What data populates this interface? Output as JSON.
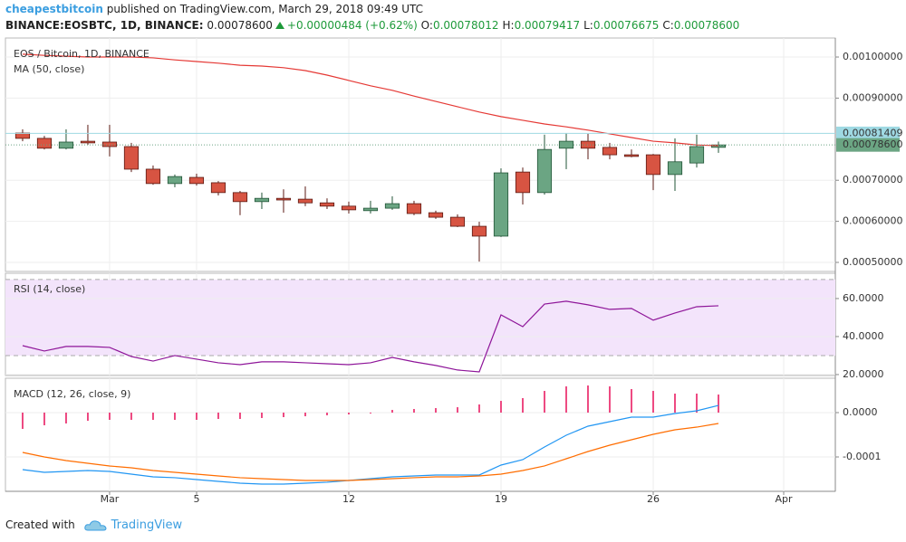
{
  "header": {
    "author": "cheapestbitcoin",
    "published": "published on TradingView.com, March 29, 2018 09:49 UTC",
    "symbol": "BINANCE:EOSBTC, 1D, BINANCE:",
    "last": "0.00078600",
    "change": "+0.00000484 (+0.62%)",
    "ohlc": [
      {
        "key": "O:",
        "text": "0.00078012"
      },
      {
        "key": "H:",
        "text": "0.00079417"
      },
      {
        "key": "L:",
        "text": "0.00076675"
      },
      {
        "key": "C:",
        "text": "0.00078600"
      }
    ]
  },
  "footer": {
    "text": "Created with",
    "brand": "TradingView"
  },
  "chart_data": [
    {
      "type": "candlestick",
      "xlim": [
        -0.79,
        37.375
      ],
      "xticks": [
        {
          "value": 4,
          "label": "Mar"
        },
        {
          "value": 8,
          "label": "5"
        },
        {
          "value": 15,
          "label": "12"
        },
        {
          "value": 22,
          "label": "19"
        },
        {
          "value": 29,
          "label": "26"
        },
        {
          "value": 35,
          "label": "Apr"
        }
      ],
      "ylim": [
        0.000478,
        0.0010463
      ],
      "yticks": [
        {
          "value": 0.0005,
          "label": "0.00050000"
        },
        {
          "value": 0.0006,
          "label": "0.00060000"
        },
        {
          "value": 0.0007,
          "label": "0.00070000"
        },
        {
          "value": 0.0009,
          "label": "0.00090000"
        },
        {
          "value": 0.001,
          "label": "0.00100000"
        }
      ],
      "grid": true,
      "series": [
        {
          "name": "EOS / Bitcoin, 1D, BINANCE",
          "type": "candlestick",
          "up_color": "#6ba583",
          "down_color": "#d75442",
          "open": [
            0.000815,
            0.000802,
            0.000778,
            0.000795,
            0.000793,
            0.000782,
            0.000727,
            0.000692,
            0.000707,
            0.000694,
            0.00067,
            0.000648,
            0.000656,
            0.000654,
            0.000645,
            0.000637,
            0.000626,
            0.000632,
            0.000643,
            0.000621,
            0.00061,
            0.000588,
            0.000564,
            0.00072,
            0.00067,
            0.000778,
            0.000795,
            0.00078,
            0.000762,
            0.000762,
            0.000714,
            0.000742,
            0.00078012
          ],
          "high": [
            0.000824,
            0.000808,
            0.000824,
            0.000835,
            0.000835,
            0.000791,
            0.000736,
            0.000714,
            0.000716,
            0.000698,
            0.000674,
            0.00067,
            0.000678,
            0.000685,
            0.000656,
            0.000648,
            0.00065,
            0.000661,
            0.00065,
            0.000626,
            0.000617,
            0.000599,
            0.000729,
            0.000731,
            0.000811,
            0.000815,
            0.000813,
            0.000791,
            0.000775,
            0.000764,
            0.000802,
            0.000811,
            0.00079417
          ],
          "low": [
            0.000795,
            0.000775,
            0.000775,
            0.000786,
            0.000758,
            0.00072,
            0.000689,
            0.000683,
            0.000687,
            0.000663,
            0.000615,
            0.00063,
            0.000621,
            0.000637,
            0.00063,
            0.000619,
            0.000619,
            0.000628,
            0.000615,
            0.000606,
            0.000586,
            0.000502,
            0.000562,
            0.000641,
            0.000665,
            0.000727,
            0.000751,
            0.000751,
            0.000756,
            0.000676,
            0.000674,
            0.000731,
            0.00076675
          ],
          "close": [
            0.000802,
            0.000778,
            0.000793,
            0.000791,
            0.000782,
            0.000727,
            0.000692,
            0.000709,
            0.000692,
            0.00067,
            0.000648,
            0.000656,
            0.000652,
            0.000645,
            0.000637,
            0.000628,
            0.000632,
            0.000643,
            0.000619,
            0.00061,
            0.000588,
            0.000564,
            0.000718,
            0.00067,
            0.000775,
            0.000795,
            0.000778,
            0.000762,
            0.000758,
            0.000714,
            0.000745,
            0.000782,
            0.000786
          ]
        },
        {
          "name": "MA (50, close)",
          "type": "line",
          "color": "#e53935",
          "values": [
            0.001007,
            0.001004,
            0.001002,
            0.001,
            0.001,
            0.001,
            0.000998,
            0.000993,
            0.000989,
            0.000985,
            0.00098,
            0.000978,
            0.000974,
            0.000967,
            0.000956,
            0.000943,
            0.00093,
            0.000919,
            0.000905,
            0.000892,
            0.000879,
            0.000866,
            0.000855,
            0.000846,
            0.000837,
            0.00083,
            0.000822,
            0.000813,
            0.000804,
            0.000795,
            0.000791,
            0.000786,
            0.000784
          ]
        }
      ],
      "price_lines": [
        {
          "value": 0.00081409,
          "color": "#9fd9e3"
        },
        {
          "value": 0.000786,
          "label": "0.00078600",
          "color": "#6ba583"
        }
      ]
    },
    {
      "type": "line",
      "ylim": [
        19.5,
        73.3
      ],
      "yticks": [
        {
          "value": 20,
          "label": "20.0000"
        },
        {
          "value": 40,
          "label": "40.0000"
        },
        {
          "value": 60,
          "label": "60.0000"
        }
      ],
      "band": [
        30,
        70
      ],
      "band_color": "#f3e4fb",
      "series": [
        {
          "name": "RSI (14, close)",
          "type": "line",
          "color": "#8e1599",
          "values": [
            35.2,
            32.4,
            34.8,
            34.8,
            34.3,
            29.5,
            27.1,
            30.0,
            28.1,
            26.2,
            25.2,
            26.7,
            26.7,
            26.2,
            25.7,
            25.2,
            26.2,
            29.0,
            26.7,
            24.8,
            22.4,
            21.4,
            51.4,
            45.2,
            57.1,
            58.6,
            56.7,
            54.3,
            54.8,
            48.6,
            52.4,
            55.7,
            56.2
          ]
        }
      ]
    },
    {
      "type": "bar",
      "ylim": [
        -0.0001776,
        7.76e-05
      ],
      "yticks": [
        -0.0001,
        {
          "value": 0,
          "label": "0.0000"
        }
      ],
      "series": [
        {
          "name": "MACD (12, 26, close, 9)",
          "type": "bar",
          "color": "#e91e63",
          "values": [
            -3.67e-05,
            -2.86e-05,
            -2.45e-05,
            -1.84e-05,
            -1.63e-05,
            -1.63e-05,
            -1.63e-05,
            -1.63e-05,
            -1.63e-05,
            -1.43e-05,
            -1.43e-05,
            -1.22e-05,
            -1.02e-05,
            -8.2e-06,
            -6.1e-06,
            -4.1e-06,
            -2e-06,
            6.1e-06,
            8.2e-06,
            1.02e-05,
            1.22e-05,
            1.84e-05,
            2.65e-05,
            3.27e-05,
            4.9e-05,
            5.92e-05,
            6.12e-05,
            5.92e-05,
            5.31e-05,
            4.9e-05,
            4.29e-05,
            4.29e-05,
            4.08e-05
          ]
        },
        {
          "type": "line",
          "color": "#2196f3",
          "values": [
            -0.0001286,
            -0.0001347,
            -0.0001327,
            -0.0001306,
            -0.0001327,
            -0.0001388,
            -0.0001449,
            -0.0001469,
            -0.000151,
            -0.0001551,
            -0.0001592,
            -0.0001612,
            -0.0001612,
            -0.0001592,
            -0.0001571,
            -0.0001531,
            -0.000149,
            -0.0001449,
            -0.0001429,
            -0.0001408,
            -0.0001408,
            -0.0001408,
            -0.0001184,
            -0.0001061,
            -7.76e-05,
            -5.1e-05,
            -3.06e-05,
            -2.04e-05,
            -1.02e-05,
            -1.02e-05,
            -2e-06,
            4.1e-06,
            1.63e-05
          ]
        },
        {
          "type": "line",
          "color": "#ff6d00",
          "values": [
            -8.98e-05,
            -0.0001,
            -0.0001082,
            -0.0001143,
            -0.0001204,
            -0.0001245,
            -0.0001306,
            -0.0001347,
            -0.0001388,
            -0.0001429,
            -0.0001469,
            -0.000149,
            -0.000151,
            -0.0001531,
            -0.0001531,
            -0.0001531,
            -0.000151,
            -0.000149,
            -0.0001469,
            -0.0001449,
            -0.0001449,
            -0.0001429,
            -0.0001388,
            -0.0001306,
            -0.0001204,
            -0.0001041,
            -8.78e-05,
            -7.35e-05,
            -6.12e-05,
            -4.9e-05,
            -3.88e-05,
            -3.27e-05,
            -2.45e-05
          ]
        }
      ]
    }
  ]
}
